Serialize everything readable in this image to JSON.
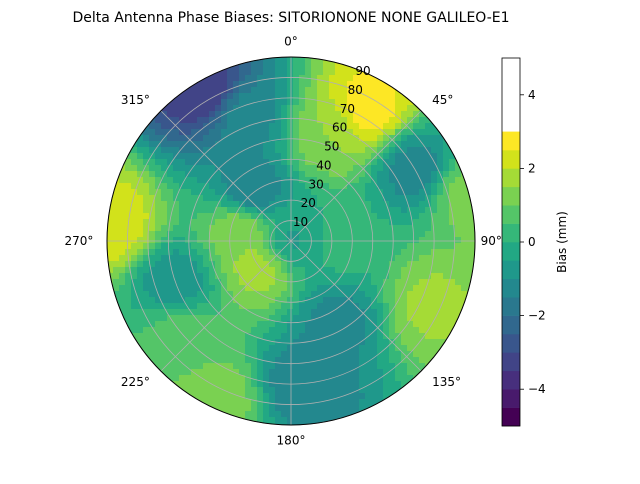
{
  "chart_data": {
    "type": "heatmap",
    "projection": "polar",
    "title": "Delta Antenna Phase Biases: SITORIONONE     NONE GALILEO-E1",
    "angular_ticks": [
      "0°",
      "45°",
      "90°",
      "135°",
      "180°",
      "225°",
      "270°",
      "315°"
    ],
    "radial_ticks": [
      "10",
      "20",
      "30",
      "40",
      "50",
      "60",
      "70",
      "80",
      "90"
    ],
    "radial_range": [
      0,
      90
    ],
    "grid": true,
    "colorbar": {
      "label": "Bias (mm)",
      "range": [
        -5,
        5
      ],
      "ticks": [
        "−4",
        "−2",
        "0",
        "2",
        "4"
      ],
      "tick_values": [
        -4,
        -2,
        0,
        2,
        4
      ],
      "levels": [
        -5,
        -4.5,
        -4,
        -3.5,
        -3,
        -2.5,
        -2,
        -1.5,
        -1,
        -0.5,
        0,
        0.5,
        1,
        1.5,
        2,
        2.5,
        3,
        3.5,
        4,
        4.5,
        5
      ],
      "colors": [
        "#440154",
        "#481a6c",
        "#472f7d",
        "#414487",
        "#39568c",
        "#31688e",
        "#2a788e",
        "#23888e",
        "#1f988b",
        "#22a884",
        "#35b779",
        "#54c568",
        "#7ad151",
        "#a5db36",
        "#d2e21b",
        "#fde725"
      ]
    },
    "color_scale": "viridis",
    "approximate_field": {
      "note_units": "Bias (mm)",
      "patches": [
        {
          "azimuth_deg": 0,
          "zenith_deg": 0,
          "value": -0.6
        },
        {
          "azimuth_deg": 30,
          "zenith_deg": 75,
          "value": 2.8
        },
        {
          "azimuth_deg": 20,
          "zenith_deg": 55,
          "value": 1.5
        },
        {
          "azimuth_deg": 330,
          "zenith_deg": 85,
          "value": -3.5
        },
        {
          "azimuth_deg": 340,
          "zenith_deg": 65,
          "value": -1.2
        },
        {
          "azimuth_deg": 60,
          "zenith_deg": 70,
          "value": -1.3
        },
        {
          "azimuth_deg": 75,
          "zenith_deg": 88,
          "value": 1.2
        },
        {
          "azimuth_deg": 275,
          "zenith_deg": 88,
          "value": 2.4
        },
        {
          "azimuth_deg": 285,
          "zenith_deg": 25,
          "value": 1.6
        },
        {
          "azimuth_deg": 230,
          "zenith_deg": 20,
          "value": 1.8
        },
        {
          "azimuth_deg": 230,
          "zenith_deg": 70,
          "value": 0.8
        },
        {
          "azimuth_deg": 250,
          "zenith_deg": 60,
          "value": -0.9
        },
        {
          "azimuth_deg": 115,
          "zenith_deg": 75,
          "value": 1.6
        },
        {
          "azimuth_deg": 150,
          "zenith_deg": 45,
          "value": -1.2
        },
        {
          "azimuth_deg": 175,
          "zenith_deg": 70,
          "value": -1.4
        },
        {
          "azimuth_deg": 205,
          "zenith_deg": 85,
          "value": 1.3
        },
        {
          "azimuth_deg": 320,
          "zenith_deg": 30,
          "value": -1.6
        },
        {
          "azimuth_deg": 90,
          "zenith_deg": 25,
          "value": 0.2
        }
      ]
    }
  }
}
